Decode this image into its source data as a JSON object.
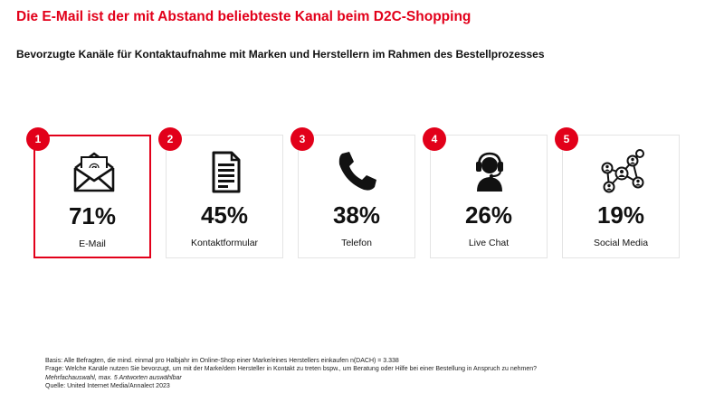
{
  "title": "Die E-Mail ist der mit Abstand beliebteste Kanal beim D2C-Shopping",
  "subtitle": "Bevorzugte Kanäle für Kontaktaufnahme mit Marken und Herstellern im Rahmen des Bestellprozesses",
  "colors": {
    "accent": "#e2001a",
    "text": "#111111",
    "border": "#e4e4e4"
  },
  "chart_data": {
    "type": "table",
    "title": "Bevorzugte Kanäle für Kontaktaufnahme mit Marken und Herstellern im Rahmen des Bestellprozesses",
    "unit": "%",
    "categories": [
      "E-Mail",
      "Kontaktformular",
      "Telefon",
      "Live Chat",
      "Social Media"
    ],
    "values": [
      71,
      45,
      38,
      26,
      19
    ],
    "ranks": [
      "1",
      "2",
      "3",
      "4",
      "5"
    ],
    "value_labels": [
      "71%",
      "45%",
      "38%",
      "26%",
      "19%"
    ],
    "icons": [
      "email-icon",
      "document-icon",
      "phone-icon",
      "headset-icon",
      "network-icon"
    ],
    "highlighted": "E-Mail"
  },
  "footnotes": {
    "basis": "Basis: Alle Befragten, die mind. einmal pro Halbjahr im Online-Shop einer Marke/eines Herstellers einkaufen n(DACH) = 3.338",
    "frage": "Frage: Welche Kanäle nutzen Sie bevorzugt, um mit der Marke/dem Hersteller in Kontakt zu treten bspw., um Beratung oder Hilfe bei einer Bestellung in Anspruch zu nehmen?",
    "note": "Mehrfachauswahl, max. 5 Antworten auswählbar",
    "quelle": "Quelle: United Internet Media/Annalect 2023"
  }
}
